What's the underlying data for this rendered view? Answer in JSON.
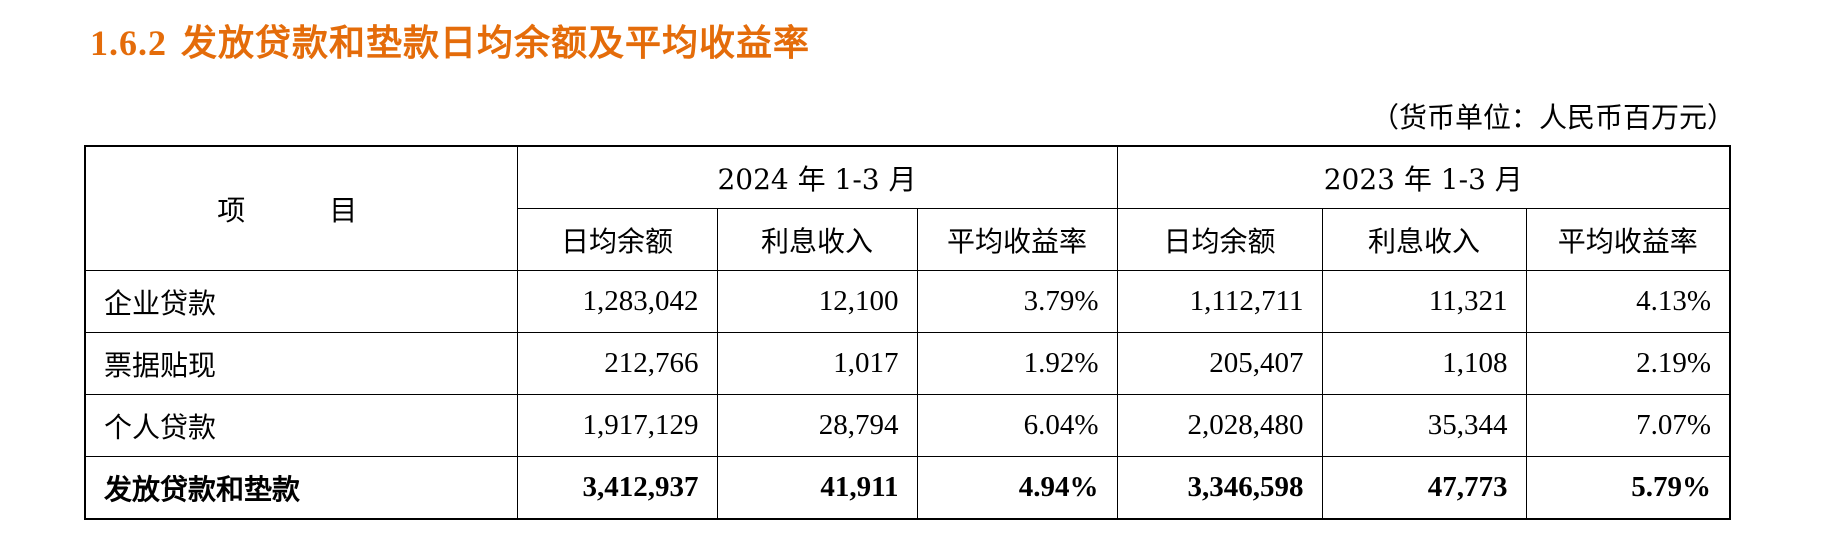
{
  "section": {
    "number": "1.6.2",
    "title": "发放贷款和垫款日均余额及平均收益率"
  },
  "unit_note": "（货币单位：人民币百万元）",
  "table": {
    "item_header": "项　目",
    "periods": [
      "2024 年 1-3 月",
      "2023 年 1-3 月"
    ],
    "columns": [
      "日均余额",
      "利息收入",
      "平均收益率",
      "日均余额",
      "利息收入",
      "平均收益率"
    ],
    "rows": [
      {
        "label": "企业贷款",
        "values": [
          "1,283,042",
          "12,100",
          "3.79%",
          "1,112,711",
          "11,321",
          "4.13%"
        ]
      },
      {
        "label": "票据贴现",
        "values": [
          "212,766",
          "1,017",
          "1.92%",
          "205,407",
          "1,108",
          "2.19%"
        ]
      },
      {
        "label": "个人贷款",
        "values": [
          "1,917,129",
          "28,794",
          "6.04%",
          "2,028,480",
          "35,344",
          "7.07%"
        ]
      },
      {
        "label": "发放贷款和垫款",
        "values": [
          "3,412,937",
          "41,911",
          "4.94%",
          "3,346,598",
          "47,773",
          "5.79%"
        ],
        "total": true
      }
    ]
  }
}
